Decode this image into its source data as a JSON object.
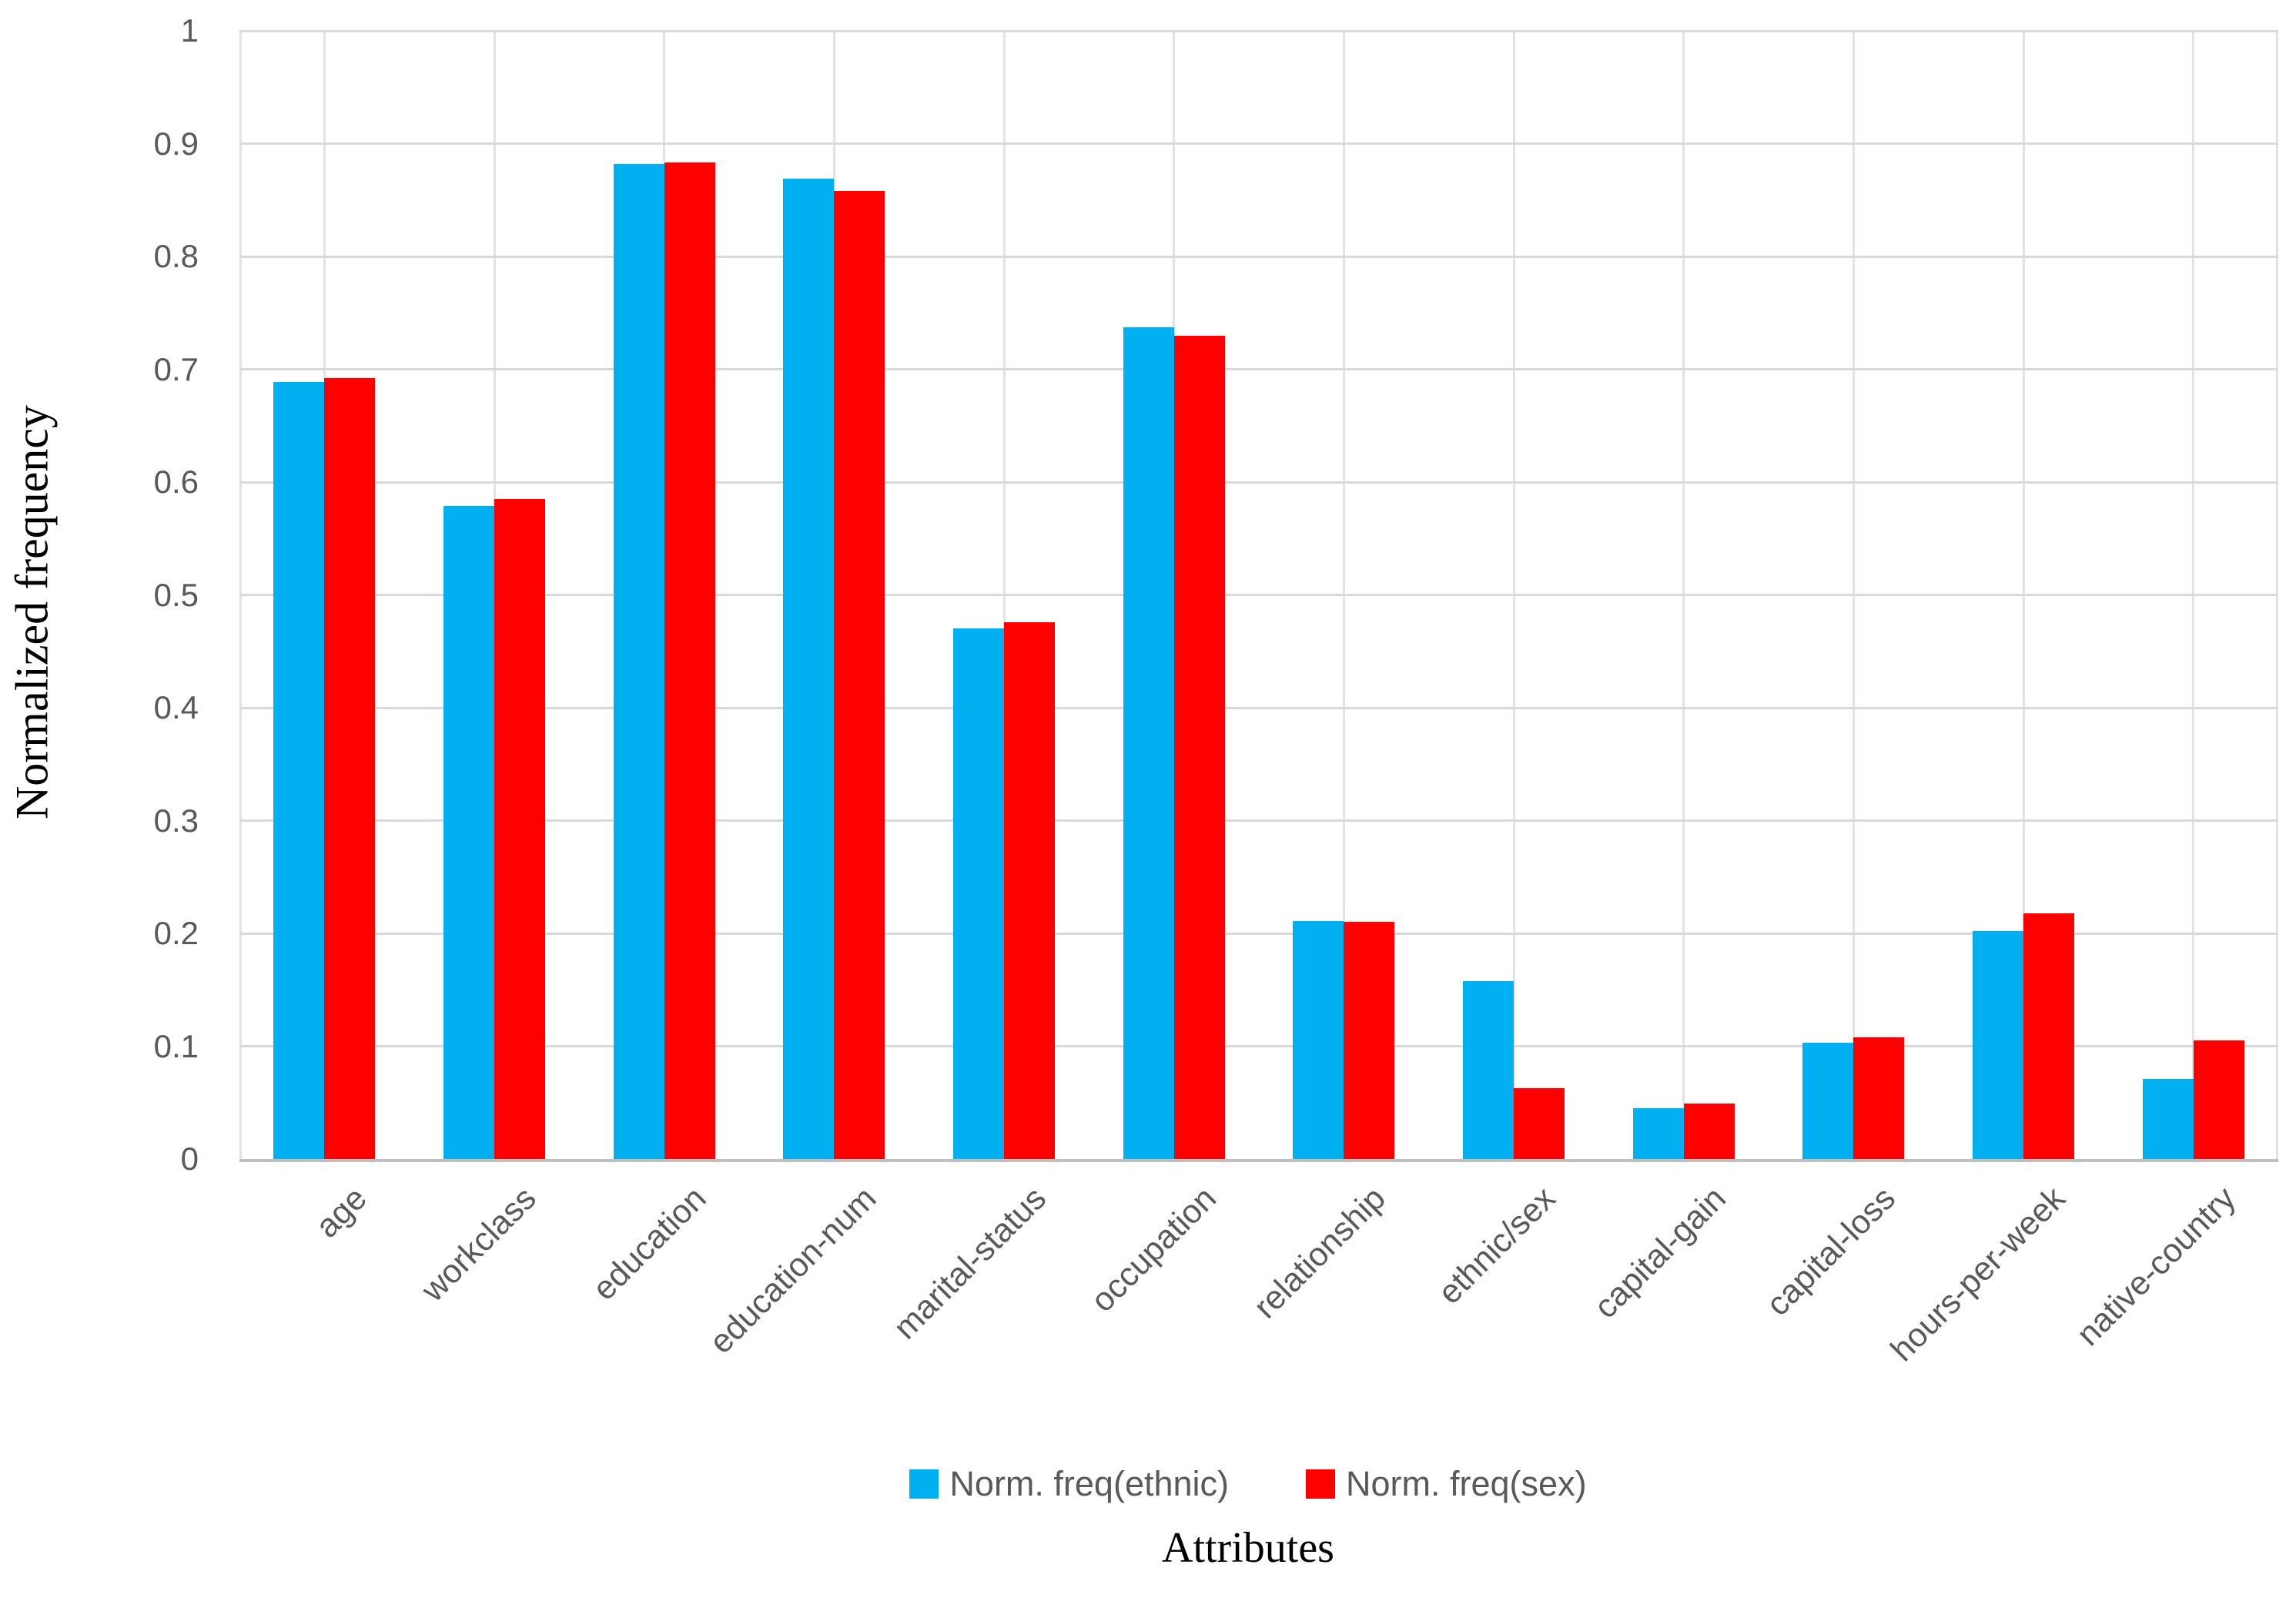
{
  "chart_data": {
    "type": "bar",
    "title": "",
    "xlabel": "Attributes",
    "ylabel": "Normalized frequency",
    "ylim": [
      0,
      1
    ],
    "ytick_step": 0.1,
    "ytick_labels": [
      "0",
      "0.1",
      "0.2",
      "0.3",
      "0.4",
      "0.5",
      "0.6",
      "0.7",
      "0.8",
      "0.9",
      "1"
    ],
    "categories": [
      "age",
      "workclass",
      "education",
      "education-num",
      "marital-status",
      "occupation",
      "relationship",
      "ethnic/sex",
      "capital-gain",
      "capital-loss",
      "hours-per-week",
      "native-country"
    ],
    "series": [
      {
        "key": "ethnic",
        "name": "Norm. freq(ethnic)",
        "color": "#00B0F0",
        "values": [
          0.689,
          0.579,
          0.882,
          0.869,
          0.47,
          0.737,
          0.211,
          0.158,
          0.045,
          0.103,
          0.202,
          0.071
        ]
      },
      {
        "key": "sex",
        "name": "Norm. freq(sex)",
        "color": "#FF0000",
        "values": [
          0.692,
          0.585,
          0.883,
          0.858,
          0.476,
          0.73,
          0.21,
          0.063,
          0.049,
          0.108,
          0.218,
          0.105
        ]
      }
    ],
    "grid": {
      "horizontal": true,
      "vertical": true,
      "gridline_color": "#D9D9D9",
      "axis_line_color": "#BFBFBF"
    },
    "legend_position": "bottom",
    "text_color": "#595959"
  }
}
